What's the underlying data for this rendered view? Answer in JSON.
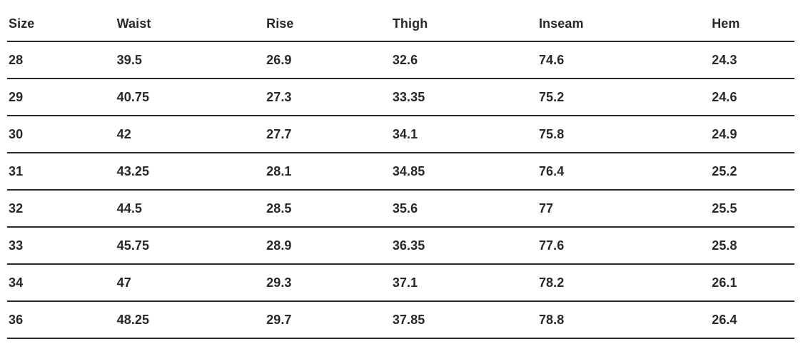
{
  "chart_data": {
    "type": "table",
    "columns": [
      "Size",
      "Waist",
      "Rise",
      "Thigh",
      "Inseam",
      "Hem"
    ],
    "rows": [
      [
        28,
        39.5,
        26.9,
        32.6,
        74.6,
        24.3
      ],
      [
        29,
        40.75,
        27.3,
        33.35,
        75.2,
        24.6
      ],
      [
        30,
        42,
        27.7,
        34.1,
        75.8,
        24.9
      ],
      [
        31,
        43.25,
        28.1,
        34.85,
        76.4,
        25.2
      ],
      [
        32,
        44.5,
        28.5,
        35.6,
        77,
        25.5
      ],
      [
        33,
        45.75,
        28.9,
        36.35,
        77.6,
        25.8
      ],
      [
        34,
        47,
        29.3,
        37.1,
        78.2,
        26.1
      ],
      [
        36,
        48.25,
        29.7,
        37.85,
        78.8,
        26.4
      ]
    ],
    "grid": "horizontal-rules-only",
    "legend_position": "none"
  },
  "colors": {
    "text": "#2a2824",
    "rule": "#2a2824",
    "background": "#ffffff"
  }
}
